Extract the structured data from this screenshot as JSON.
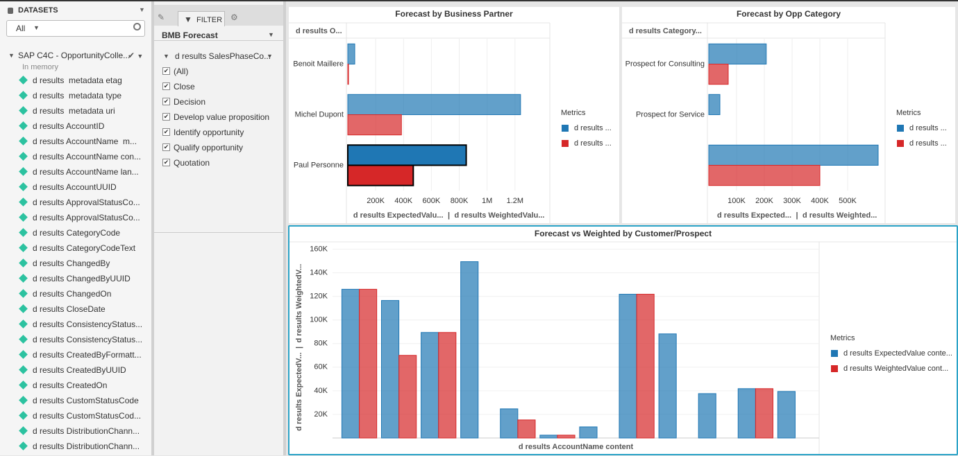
{
  "sidebar": {
    "title": "DATASETS",
    "filter": "All",
    "dataset": {
      "name": "SAP C4C - OpportunityColle...",
      "status": "In memory"
    },
    "fields": [
      "d results  metadata etag",
      "d results  metadata type",
      "d results  metadata uri",
      "d results AccountID",
      "d results AccountName  m...",
      "d results AccountName con...",
      "d results AccountName lan...",
      "d results AccountUUID",
      "d results ApprovalStatusCo...",
      "d results ApprovalStatusCo...",
      "d results CategoryCode",
      "d results CategoryCodeText",
      "d results ChangedBy",
      "d results ChangedByUUID",
      "d results ChangedOn",
      "d results CloseDate",
      "d results ConsistencyStatus...",
      "d results ConsistencyStatus...",
      "d results CreatedByFormatt...",
      "d results CreatedByUUID",
      "d results CreatedOn",
      "d results CustomStatusCode",
      "d results CustomStatusCod...",
      "d results DistributionChann...",
      "d results DistributionChann..."
    ]
  },
  "filter_panel": {
    "tab": "FILTER",
    "name": "BMB Forecast",
    "filter": {
      "label": "d results SalesPhaseCo...",
      "options": [
        "(All)",
        "Close",
        "Decision",
        "Develop value proposition",
        "Identify opportunity",
        "Qualify opportunity",
        "Quotation"
      ]
    }
  },
  "charts": [
    {
      "type": "hbar",
      "title": "Forecast by Business Partner",
      "category_header": "d results O...",
      "categories": [
        "Benoit Maillere",
        "Michel Dupont",
        "Paul Personne"
      ],
      "series": [
        {
          "name": "d results ...",
          "color": "#1f77b4",
          "values": [
            50000,
            1240000,
            850000
          ]
        },
        {
          "name": "d results ...",
          "color": "#d62728",
          "values": [
            5000,
            385000,
            470000
          ]
        }
      ],
      "xlim": [
        0,
        1450000
      ],
      "xticks": [
        {
          "value": 200000,
          "label": "200K"
        },
        {
          "value": 400000,
          "label": "400K"
        },
        {
          "value": 600000,
          "label": "600K"
        },
        {
          "value": 800000,
          "label": "800K"
        },
        {
          "value": 1000000,
          "label": "1M"
        },
        {
          "value": 1200000,
          "label": "1.2M"
        }
      ],
      "axis_labels": [
        "d results ExpectedValu...",
        "|",
        "d results WeightedValu..."
      ],
      "legend_title": "Metrics",
      "grid": true,
      "selected_index": 2
    },
    {
      "type": "hbar",
      "title": "Forecast by Opp Category",
      "category_header": "d results Category...",
      "categories": [
        "Prospect for Consulting",
        "Prospect for Service",
        null
      ],
      "series": [
        {
          "name": "d results ...",
          "color": "#1f77b4",
          "values": [
            207000,
            40000,
            610000
          ]
        },
        {
          "name": "d results ...",
          "color": "#d62728",
          "values": [
            70000,
            null,
            400000
          ]
        }
      ],
      "xlim": [
        0,
        635000
      ],
      "xticks": [
        {
          "value": 100000,
          "label": "100K"
        },
        {
          "value": 200000,
          "label": "200K"
        },
        {
          "value": 300000,
          "label": "300K"
        },
        {
          "value": 400000,
          "label": "400K"
        },
        {
          "value": 500000,
          "label": "500K"
        }
      ],
      "axis_labels": [
        "d results Expected...",
        "|",
        "d results Weighted..."
      ],
      "legend_title": "Metrics",
      "grid": true
    },
    {
      "type": "bar",
      "title": "Forecast vs Weighted by Customer/Prospect",
      "categories": [
        null,
        null,
        null,
        null,
        null,
        null,
        null,
        null,
        null,
        null,
        null,
        null
      ],
      "series": [
        {
          "name": "d results ExpectedValue conte...",
          "color": "#1f77b4",
          "values": [
            126000,
            116500,
            89400,
            149400,
            24700,
            2400,
            9400,
            121800,
            88200,
            37600,
            41800,
            39400
          ]
        },
        {
          "name": "d results WeightedValue cont...",
          "color": "#d62728",
          "values": [
            126000,
            70000,
            89400,
            null,
            15300,
            2400,
            null,
            121800,
            null,
            null,
            41800,
            null
          ]
        }
      ],
      "ylim": [
        0,
        165000
      ],
      "yticks": [
        {
          "value": 20000,
          "label": "20K"
        },
        {
          "value": 40000,
          "label": "40K"
        },
        {
          "value": 60000,
          "label": "60K"
        },
        {
          "value": 80000,
          "label": "80K"
        },
        {
          "value": 100000,
          "label": "100K"
        },
        {
          "value": 120000,
          "label": "120K"
        },
        {
          "value": 140000,
          "label": "140K"
        },
        {
          "value": 160000,
          "label": "160K"
        }
      ],
      "y_axis_labels": [
        "d results ExpectedV...",
        "|",
        "d results WeightedV..."
      ],
      "x_axis_label": "d results AccountName content",
      "legend_title": "Metrics",
      "grid": true
    }
  ]
}
